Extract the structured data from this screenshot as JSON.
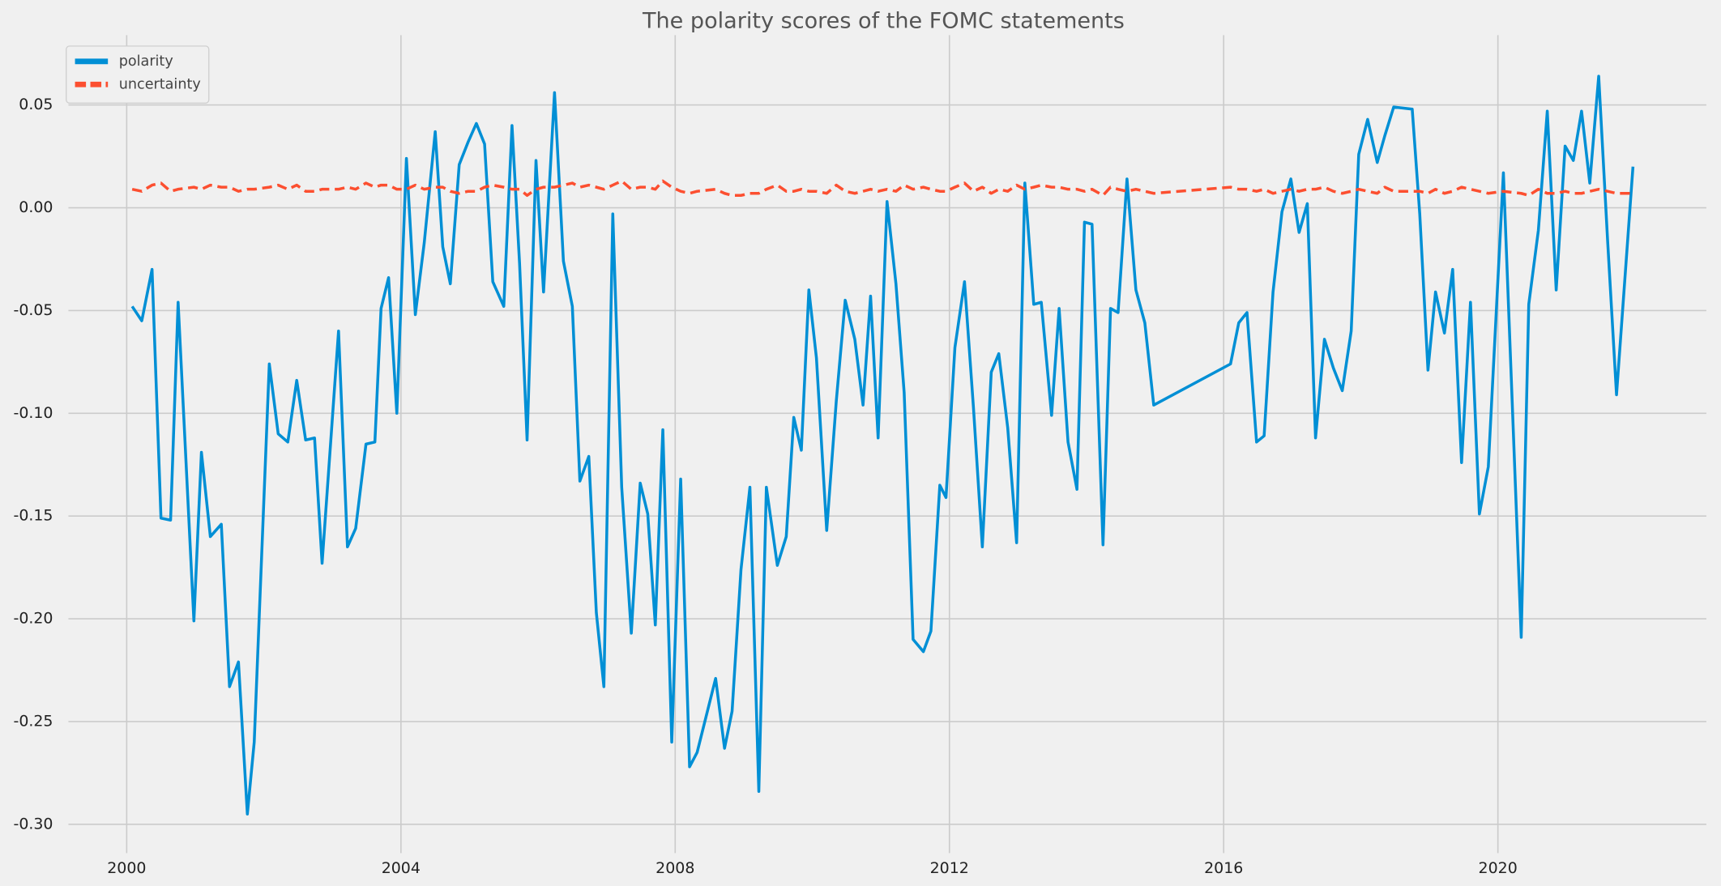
{
  "chart_data": {
    "type": "line",
    "title": "The polarity scores of the FOMC statements",
    "x": [
      2000.08,
      2000.22,
      2000.37,
      2000.5,
      2000.64,
      2000.75,
      2000.98,
      2001.09,
      2001.22,
      2001.38,
      2001.5,
      2001.63,
      2001.76,
      2001.86,
      2002.08,
      2002.21,
      2002.35,
      2002.48,
      2002.61,
      2002.74,
      2002.85,
      2003.09,
      2003.22,
      2003.34,
      2003.49,
      2003.62,
      2003.71,
      2003.82,
      2003.94,
      2004.08,
      2004.21,
      2004.34,
      2004.5,
      2004.61,
      2004.72,
      2004.85,
      2004.98,
      2005.1,
      2005.22,
      2005.34,
      2005.5,
      2005.62,
      2005.73,
      2005.84,
      2005.97,
      2006.08,
      2006.24,
      2006.37,
      2006.5,
      2006.61,
      2006.74,
      2006.85,
      2006.96,
      2007.09,
      2007.22,
      2007.36,
      2007.49,
      2007.6,
      2007.71,
      2007.82,
      2007.95,
      2008.08,
      2008.21,
      2008.32,
      2008.59,
      2008.72,
      2008.83,
      2008.96,
      2009.09,
      2009.22,
      2009.33,
      2009.49,
      2009.62,
      2009.73,
      2009.84,
      2009.95,
      2010.06,
      2010.21,
      2010.35,
      2010.48,
      2010.62,
      2010.74,
      2010.85,
      2010.96,
      2011.09,
      2011.22,
      2011.34,
      2011.47,
      2011.62,
      2011.73,
      2011.86,
      2011.95,
      2012.08,
      2012.22,
      2012.35,
      2012.48,
      2012.61,
      2012.72,
      2012.85,
      2012.98,
      2013.1,
      2013.23,
      2013.34,
      2013.49,
      2013.6,
      2013.73,
      2013.86,
      2013.97,
      2014.08,
      2014.24,
      2014.35,
      2014.46,
      2014.59,
      2014.72,
      2014.85,
      2014.98,
      2016.1,
      2016.22,
      2016.34,
      2016.48,
      2016.59,
      2016.72,
      2016.85,
      2016.98,
      2017.1,
      2017.22,
      2017.34,
      2017.47,
      2017.6,
      2017.73,
      2017.86,
      2017.97,
      2018.1,
      2018.24,
      2018.35,
      2018.48,
      2018.75,
      2018.86,
      2018.98,
      2019.09,
      2019.22,
      2019.34,
      2019.47,
      2019.6,
      2019.73,
      2019.86,
      2020.08,
      2020.34,
      2020.45,
      2020.59,
      2020.72,
      2020.85,
      2020.98,
      2021.1,
      2021.22,
      2021.34,
      2021.47,
      2021.6,
      2021.73,
      2021.97
    ],
    "series": [
      {
        "name": "polarity",
        "color": "#008fd5",
        "linestyle": "solid",
        "values": [
          -0.048,
          -0.055,
          -0.03,
          -0.151,
          -0.152,
          -0.046,
          -0.201,
          -0.119,
          -0.16,
          -0.154,
          -0.233,
          -0.221,
          -0.295,
          -0.26,
          -0.076,
          -0.11,
          -0.114,
          -0.084,
          -0.113,
          -0.112,
          -0.173,
          -0.06,
          -0.165,
          -0.156,
          -0.115,
          -0.114,
          -0.049,
          -0.034,
          -0.1,
          0.024,
          -0.052,
          -0.017,
          0.037,
          -0.019,
          -0.037,
          0.021,
          0.032,
          0.041,
          0.031,
          -0.036,
          -0.048,
          0.04,
          -0.027,
          -0.113,
          0.023,
          -0.041,
          0.056,
          -0.026,
          -0.048,
          -0.133,
          -0.121,
          -0.197,
          -0.233,
          -0.003,
          -0.136,
          -0.207,
          -0.134,
          -0.149,
          -0.203,
          -0.108,
          -0.26,
          -0.132,
          -0.272,
          -0.265,
          -0.229,
          -0.263,
          -0.245,
          -0.176,
          -0.136,
          -0.284,
          -0.136,
          -0.174,
          -0.16,
          -0.102,
          -0.118,
          -0.04,
          -0.073,
          -0.157,
          -0.094,
          -0.045,
          -0.064,
          -0.096,
          -0.043,
          -0.112,
          0.003,
          -0.037,
          -0.09,
          -0.21,
          -0.216,
          -0.206,
          -0.135,
          -0.141,
          -0.068,
          -0.036,
          -0.097,
          -0.165,
          -0.08,
          -0.071,
          -0.107,
          -0.163,
          0.012,
          -0.047,
          -0.046,
          -0.101,
          -0.049,
          -0.114,
          -0.137,
          -0.007,
          -0.008,
          -0.164,
          -0.049,
          -0.051,
          0.014,
          -0.04,
          -0.056,
          -0.096,
          -0.076,
          -0.056,
          -0.051,
          -0.114,
          -0.111,
          -0.041,
          -0.002,
          0.014,
          -0.012,
          0.002,
          -0.112,
          -0.064,
          -0.078,
          -0.089,
          -0.06,
          0.026,
          0.043,
          0.022,
          0.035,
          0.049,
          0.048,
          -0.003,
          -0.079,
          -0.041,
          -0.061,
          -0.03,
          -0.124,
          -0.046,
          -0.149,
          -0.126,
          0.017,
          -0.209,
          -0.047,
          -0.011,
          0.047,
          -0.04,
          0.03,
          0.023,
          0.047,
          0.012,
          0.064,
          -0.016,
          -0.091,
          0.02
        ]
      },
      {
        "name": "uncertainty",
        "color": "#fc4f30",
        "linestyle": "dashed",
        "values": [
          0.009,
          0.008,
          0.011,
          0.012,
          0.008,
          0.009,
          0.01,
          0.009,
          0.011,
          0.01,
          0.01,
          0.008,
          0.009,
          0.009,
          0.01,
          0.011,
          0.009,
          0.011,
          0.008,
          0.008,
          0.009,
          0.009,
          0.01,
          0.009,
          0.012,
          0.01,
          0.011,
          0.011,
          0.009,
          0.009,
          0.011,
          0.009,
          0.01,
          0.01,
          0.008,
          0.007,
          0.008,
          0.008,
          0.01,
          0.011,
          0.01,
          0.009,
          0.009,
          0.006,
          0.009,
          0.01,
          0.01,
          0.011,
          0.012,
          0.01,
          0.011,
          0.01,
          0.009,
          0.011,
          0.013,
          0.009,
          0.01,
          0.01,
          0.009,
          0.013,
          0.01,
          0.008,
          0.007,
          0.008,
          0.009,
          0.007,
          0.006,
          0.006,
          0.007,
          0.007,
          0.009,
          0.011,
          0.008,
          0.008,
          0.009,
          0.008,
          0.008,
          0.007,
          0.011,
          0.008,
          0.007,
          0.008,
          0.009,
          0.008,
          0.009,
          0.008,
          0.011,
          0.009,
          0.01,
          0.009,
          0.008,
          0.008,
          0.01,
          0.012,
          0.008,
          0.01,
          0.007,
          0.009,
          0.008,
          0.011,
          0.009,
          0.01,
          0.011,
          0.01,
          0.01,
          0.009,
          0.009,
          0.008,
          0.009,
          0.006,
          0.01,
          0.009,
          0.008,
          0.009,
          0.008,
          0.007,
          0.01,
          0.009,
          0.009,
          0.008,
          0.009,
          0.007,
          0.008,
          0.009,
          0.008,
          0.009,
          0.009,
          0.01,
          0.008,
          0.007,
          0.008,
          0.009,
          0.008,
          0.007,
          0.01,
          0.008,
          0.008,
          0.008,
          0.007,
          0.009,
          0.007,
          0.008,
          0.01,
          0.009,
          0.008,
          0.007,
          0.008,
          0.007,
          0.006,
          0.009,
          0.007,
          0.007,
          0.008,
          0.007,
          0.007,
          0.008,
          0.009,
          0.008,
          0.007,
          0.007
        ]
      }
    ],
    "xlim": [
      1999.15,
      2023.04
    ],
    "xticks": [
      2000,
      2004,
      2008,
      2012,
      2016,
      2020
    ],
    "ylim": [
      -0.314,
      0.084
    ],
    "yticks": [
      {
        "value": -0.3,
        "label": "-0.30"
      },
      -0.25,
      {
        "value": -0.2,
        "label": "-0.20"
      },
      -0.15,
      {
        "value": -0.1,
        "label": "-0.10"
      },
      -0.05,
      {
        "value": 0,
        "label": "0.00"
      },
      0.05
    ],
    "grid": true,
    "legend": "upper left"
  }
}
